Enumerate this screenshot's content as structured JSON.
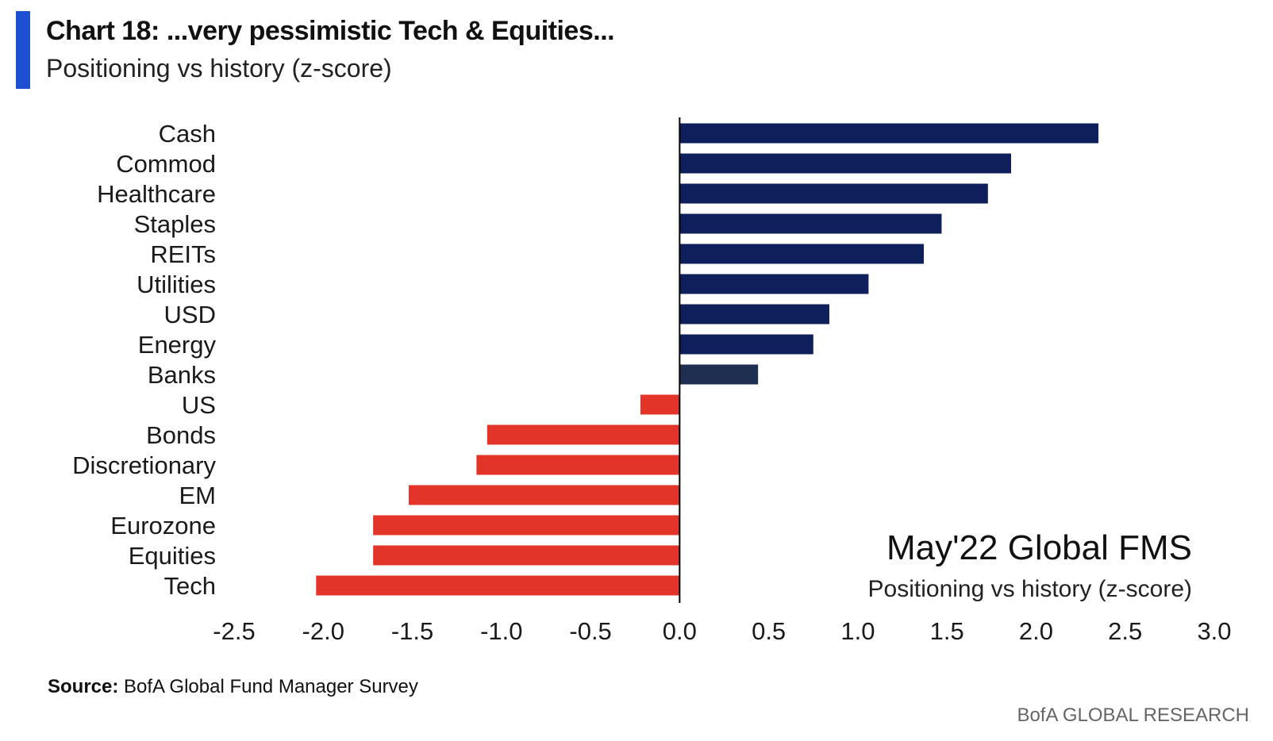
{
  "header": {
    "title": "Chart 18: ...very pessimistic Tech & Equities...",
    "subtitle": "Positioning vs history (z-score)"
  },
  "colors": {
    "accent": "#1d4fd1",
    "positive": "#0f1f5c",
    "banks": "#1f2f52",
    "negative": "#e3342a"
  },
  "chart_data": {
    "type": "bar",
    "orientation": "horizontal",
    "categories": [
      "Cash",
      "Commod",
      "Healthcare",
      "Staples",
      "REITs",
      "Utilities",
      "USD",
      "Energy",
      "Banks",
      "US",
      "Bonds",
      "Discretionary",
      "EM",
      "Eurozone",
      "Equities",
      "Tech"
    ],
    "values": [
      2.35,
      1.86,
      1.73,
      1.47,
      1.37,
      1.06,
      0.84,
      0.75,
      0.44,
      -0.22,
      -1.08,
      -1.14,
      -1.52,
      -1.72,
      -1.72,
      -2.04
    ],
    "xlim": [
      -2.5,
      3.0
    ],
    "xticks": [
      "-2.5",
      "-2.0",
      "-1.5",
      "-1.0",
      "-0.5",
      "0.0",
      "0.5",
      "1.0",
      "1.5",
      "2.0",
      "2.5",
      "3.0"
    ],
    "grid": false,
    "annotation": {
      "title": "May'22 Global FMS",
      "subtitle": "Positioning vs history (z-score)"
    }
  },
  "footer": {
    "source_label": "Source:",
    "source_text": "BofA Global Fund Manager Survey",
    "brand": "BofA GLOBAL RESEARCH"
  }
}
